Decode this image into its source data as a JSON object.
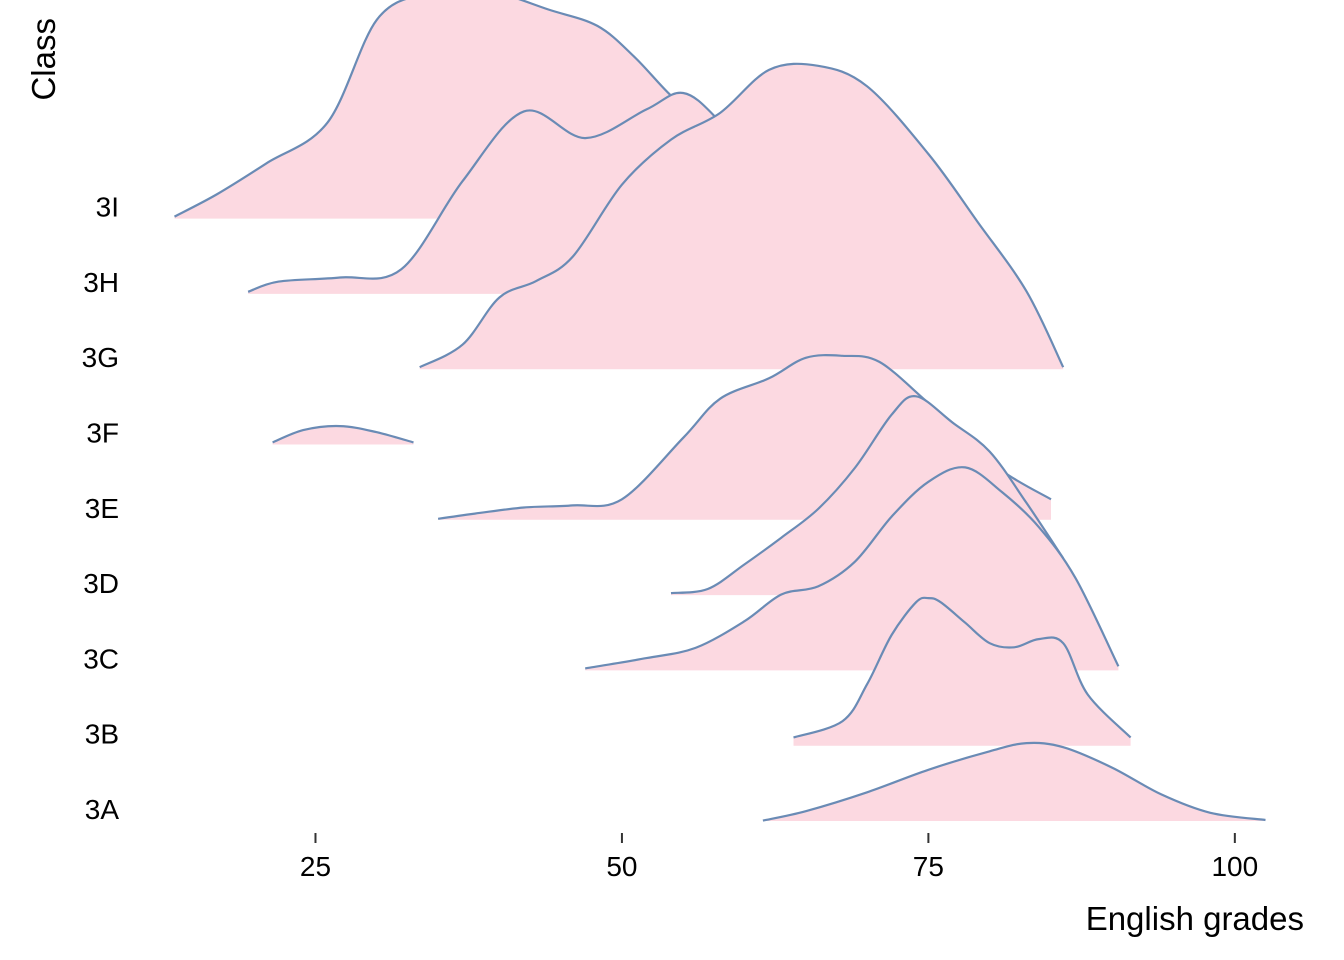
{
  "chart_data": {
    "type": "ridgeline",
    "xlabel": "English grades",
    "ylabel": "Class",
    "xlim": [
      11.5,
      104.5
    ],
    "x_ticks": [
      25,
      50,
      75,
      100
    ],
    "fill_color": "#fcd9e1",
    "line_color": "#6a8bb5",
    "categories": [
      "3A",
      "3B",
      "3C",
      "3D",
      "3E",
      "3F",
      "3G",
      "3H",
      "3I"
    ],
    "series": [
      {
        "name": "3A",
        "x": [
          61.5,
          65,
          70,
          75,
          80,
          83,
          86,
          90,
          94,
          98,
          102.5
        ],
        "density": [
          0.002,
          0.048,
          0.14,
          0.25,
          0.34,
          0.38,
          0.36,
          0.26,
          0.13,
          0.04,
          0.005
        ]
      },
      {
        "name": "3B",
        "x": [
          64,
          68,
          70,
          72,
          74,
          75,
          76,
          78,
          80,
          82,
          84,
          86,
          88,
          91.5
        ],
        "density": [
          0.04,
          0.12,
          0.3,
          0.54,
          0.7,
          0.72,
          0.7,
          0.6,
          0.5,
          0.48,
          0.52,
          0.5,
          0.25,
          0.04
        ]
      },
      {
        "name": "3C",
        "x": [
          47,
          52,
          56,
          60,
          63,
          66,
          69,
          72,
          75,
          78,
          81,
          84,
          87,
          90.5
        ],
        "density": [
          0.01,
          0.06,
          0.11,
          0.24,
          0.37,
          0.41,
          0.53,
          0.75,
          0.92,
          0.99,
          0.87,
          0.7,
          0.45,
          0.02
        ]
      },
      {
        "name": "3D",
        "x": [
          54,
          57,
          60,
          63,
          66,
          69,
          72,
          74,
          77,
          80,
          83,
          86
        ],
        "density": [
          0.01,
          0.03,
          0.15,
          0.28,
          0.42,
          0.62,
          0.88,
          0.97,
          0.84,
          0.7,
          0.45,
          0.18
        ]
      },
      {
        "name": "3E",
        "x": [
          35,
          38,
          42,
          46,
          50,
          55,
          58,
          62,
          65,
          68,
          71,
          75,
          78,
          81,
          85
        ],
        "density": [
          0.005,
          0.03,
          0.06,
          0.07,
          0.1,
          0.4,
          0.59,
          0.69,
          0.79,
          0.8,
          0.77,
          0.57,
          0.42,
          0.24,
          0.1
        ]
      },
      {
        "name": "3F",
        "x": [
          21.5,
          24,
          27,
          30,
          33
        ],
        "density": [
          0.01,
          0.07,
          0.09,
          0.06,
          0.01
        ]
      },
      {
        "name": "3G",
        "x": [
          33.5,
          37,
          40,
          43,
          46,
          50,
          54,
          58,
          62,
          66,
          70,
          75,
          79,
          83,
          86
        ],
        "density": [
          0.01,
          0.12,
          0.35,
          0.43,
          0.55,
          0.9,
          1.12,
          1.25,
          1.46,
          1.48,
          1.38,
          1.05,
          0.72,
          0.38,
          0.01
        ]
      },
      {
        "name": "3H",
        "x": [
          19.5,
          22,
          27,
          32,
          37,
          42,
          47,
          52,
          55,
          58,
          62,
          66,
          70,
          75,
          79
        ],
        "density": [
          0.01,
          0.06,
          0.08,
          0.12,
          0.55,
          0.89,
          0.76,
          0.9,
          0.98,
          0.84,
          0.56,
          0.26,
          0.1,
          0.03,
          0.01
        ]
      },
      {
        "name": "3I",
        "x": [
          13.5,
          17,
          21,
          26,
          30,
          34,
          37,
          40,
          44,
          48,
          51,
          54,
          57,
          60,
          63,
          66,
          70,
          73,
          76
        ],
        "density": [
          0.01,
          0.12,
          0.27,
          0.47,
          0.97,
          1.1,
          1.12,
          1.1,
          1.02,
          0.94,
          0.79,
          0.6,
          0.45,
          0.25,
          0.13,
          0.06,
          0.02,
          0.01,
          0.005
        ]
      }
    ]
  }
}
